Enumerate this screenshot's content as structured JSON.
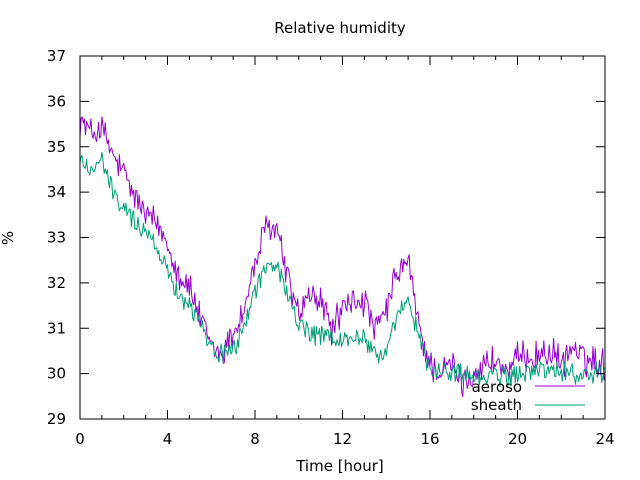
{
  "chart_data": {
    "type": "line",
    "title": "Relative humidity",
    "xlabel": "Time [hour]",
    "ylabel": "%",
    "xlim": [
      0,
      24
    ],
    "ylim": [
      29,
      37
    ],
    "grid": false,
    "legend_position": "bottom-right",
    "x_ticks": [
      0,
      4,
      8,
      12,
      16,
      20,
      24
    ],
    "y_ticks": [
      29,
      30,
      31,
      32,
      33,
      34,
      35,
      36,
      37
    ],
    "x_tick_labels": [
      "0",
      "4",
      "8",
      "12",
      "16",
      "20",
      "24"
    ],
    "y_tick_labels": [
      "29",
      "30",
      "31",
      "32",
      "33",
      "34",
      "35",
      "36",
      "37"
    ],
    "series": [
      {
        "name": "aeroso",
        "color": "#9400d3",
        "x": [
          0,
          0.5,
          1,
          1.5,
          2,
          2.5,
          3,
          3.5,
          4,
          4.5,
          5,
          5.5,
          6,
          6.5,
          7,
          7.5,
          8,
          8.5,
          9,
          9.5,
          10,
          10.5,
          11,
          11.5,
          12,
          12.5,
          13,
          13.5,
          14,
          14.5,
          15,
          15.5,
          16,
          16.5,
          17,
          17.5,
          18,
          18.5,
          19,
          19.5,
          20,
          20.5,
          21,
          21.5,
          22,
          22.5,
          23,
          23.5,
          24
        ],
        "y": [
          35.6,
          35.3,
          35.4,
          34.8,
          34.4,
          33.9,
          33.5,
          33.3,
          32.9,
          32.2,
          31.9,
          31.2,
          30.6,
          30.4,
          30.9,
          31.4,
          32.4,
          33.2,
          33.2,
          32.1,
          31.3,
          31.7,
          31.6,
          31.0,
          31.4,
          31.6,
          31.6,
          30.9,
          31.4,
          32.2,
          32.5,
          31.0,
          30.2,
          30.0,
          30.2,
          29.8,
          30.0,
          30.2,
          30.3,
          30.0,
          30.3,
          30.4,
          30.4,
          30.5,
          30.2,
          30.6,
          30.3,
          30.3,
          30.2
        ]
      },
      {
        "name": "sheath",
        "color": "#009e73",
        "x": [
          0,
          0.5,
          1,
          1.5,
          2,
          2.5,
          3,
          3.5,
          4,
          4.5,
          5,
          5.5,
          6,
          6.5,
          7,
          7.5,
          8,
          8.5,
          9,
          9.5,
          10,
          10.5,
          11,
          11.5,
          12,
          12.5,
          13,
          13.5,
          14,
          14.5,
          15,
          15.5,
          16,
          16.5,
          17,
          17.5,
          18,
          18.5,
          19,
          19.5,
          20,
          20.5,
          21,
          21.5,
          22,
          22.5,
          23,
          23.5,
          24
        ],
        "y": [
          34.7,
          34.5,
          34.7,
          34.0,
          33.6,
          33.4,
          33.1,
          32.8,
          32.3,
          31.8,
          31.5,
          31.2,
          30.6,
          30.4,
          30.5,
          31.0,
          31.9,
          32.3,
          32.4,
          31.7,
          31.1,
          30.9,
          30.8,
          30.8,
          30.7,
          30.8,
          30.8,
          30.4,
          30.5,
          31.2,
          31.6,
          30.8,
          30.1,
          30.0,
          30.1,
          30.0,
          29.9,
          29.9,
          30.0,
          29.9,
          30.0,
          30.0,
          30.1,
          30.1,
          30.0,
          30.0,
          30.0,
          30.0,
          30.0
        ]
      }
    ]
  }
}
